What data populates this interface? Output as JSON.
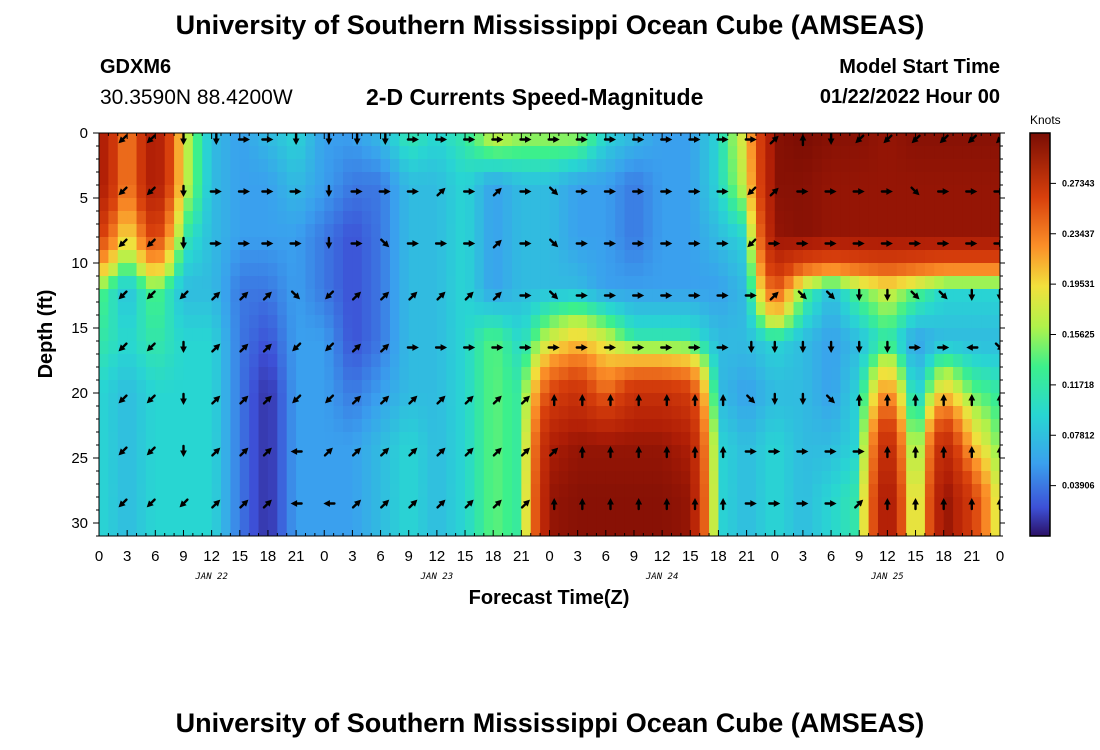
{
  "header": {
    "title": "University of Southern Mississippi Ocean Cube (AMSEAS)",
    "station": "GDXM6",
    "coords": "30.3590N  88.4200W",
    "subtitle": "2-D Currents Speed-Magnitude",
    "start_label": "Model Start Time",
    "start_value": "01/22/2022 Hour 00"
  },
  "footer": {
    "title": "University of Southern Mississippi Ocean Cube (AMSEAS)"
  },
  "chart_data": {
    "type": "heatmap",
    "title": "2-D Currents Speed-Magnitude",
    "xlabel": "Forecast Time(Z)",
    "ylabel": "Depth (ft)",
    "x_tick_labels": [
      "0",
      "3",
      "6",
      "9",
      "12",
      "15",
      "18",
      "21",
      "0",
      "3",
      "6",
      "9",
      "12",
      "15",
      "18",
      "21",
      "0",
      "3",
      "6",
      "9",
      "12",
      "15",
      "18",
      "21",
      "0",
      "3",
      "6",
      "9",
      "12",
      "15",
      "18",
      "21",
      "0"
    ],
    "xlim_hours": [
      0,
      96
    ],
    "day_labels": [
      {
        "label": "JAN 22",
        "hour": 12
      },
      {
        "label": "JAN 23",
        "hour": 36
      },
      {
        "label": "JAN 24",
        "hour": 60
      },
      {
        "label": "JAN 25",
        "hour": 84
      }
    ],
    "y_tick_labels": [
      "0",
      "5",
      "10",
      "15",
      "20",
      "25",
      "30"
    ],
    "ylim_ft": [
      0,
      31
    ],
    "colorbar": {
      "unit": "Knots",
      "ticks": [
        "0.27343",
        "0.23437",
        "0.19531",
        "0.15625",
        "0.11718",
        "0.07812",
        "0.03906"
      ],
      "range": [
        0,
        0.3125
      ]
    },
    "vector_hours": [
      2.5,
      5.5,
      9,
      12.5,
      15.5,
      18,
      21,
      24.5,
      27.5,
      30.5,
      33.5,
      36.5,
      39.5,
      42.5,
      45.5,
      48.5,
      51.5,
      54.5,
      57.5,
      60.5,
      63.5,
      66.5,
      69.5,
      72,
      75,
      78,
      81,
      84,
      87,
      90,
      93,
      96
    ],
    "vector_depths_ft": [
      0.5,
      4.5,
      8.5,
      12.5,
      16.5,
      20.5,
      24.5,
      28.5
    ],
    "speed_field_knots": {
      "hours": [
        0,
        3,
        6,
        9,
        12,
        15,
        18,
        21,
        24,
        27,
        30,
        33,
        36,
        39,
        42,
        45,
        48,
        51,
        54,
        57,
        60,
        63,
        66,
        69,
        72,
        75,
        78,
        81,
        84,
        87,
        90,
        93,
        96
      ],
      "depths_ft": [
        0,
        4,
        8,
        12,
        16,
        20,
        24,
        28,
        31
      ],
      "values": [
        [
          0.28,
          0.14,
          0.28,
          0.1,
          0.05,
          0.04,
          0.05,
          0.06,
          0.04,
          0.04,
          0.05,
          0.07,
          0.06,
          0.07,
          0.1,
          0.09,
          0.09,
          0.09,
          0.06,
          0.05,
          0.04,
          0.04,
          0.06,
          0.11,
          0.29,
          0.3,
          0.29,
          0.29,
          0.28,
          0.29,
          0.29,
          0.29,
          0.29
        ],
        [
          0.28,
          0.14,
          0.28,
          0.1,
          0.05,
          0.04,
          0.04,
          0.05,
          0.04,
          0.03,
          0.03,
          0.05,
          0.05,
          0.06,
          0.04,
          0.05,
          0.05,
          0.04,
          0.04,
          0.03,
          0.04,
          0.04,
          0.06,
          0.1,
          0.29,
          0.29,
          0.28,
          0.28,
          0.28,
          0.28,
          0.28,
          0.28,
          0.28
        ],
        [
          0.2,
          0.1,
          0.2,
          0.07,
          0.05,
          0.04,
          0.04,
          0.04,
          0.03,
          0.02,
          0.03,
          0.05,
          0.05,
          0.06,
          0.04,
          0.05,
          0.05,
          0.04,
          0.04,
          0.03,
          0.04,
          0.04,
          0.05,
          0.06,
          0.28,
          0.29,
          0.28,
          0.28,
          0.28,
          0.28,
          0.28,
          0.28,
          0.28
        ],
        [
          0.08,
          0.05,
          0.08,
          0.05,
          0.05,
          0.03,
          0.03,
          0.04,
          0.03,
          0.02,
          0.03,
          0.05,
          0.05,
          0.06,
          0.04,
          0.05,
          0.05,
          0.05,
          0.04,
          0.04,
          0.04,
          0.04,
          0.04,
          0.05,
          0.18,
          0.08,
          0.05,
          0.08,
          0.1,
          0.08,
          0.06,
          0.06,
          0.06
        ],
        [
          0.07,
          0.06,
          0.07,
          0.06,
          0.06,
          0.03,
          0.02,
          0.04,
          0.04,
          0.02,
          0.03,
          0.05,
          0.05,
          0.06,
          0.08,
          0.06,
          0.1,
          0.12,
          0.1,
          0.07,
          0.07,
          0.07,
          0.05,
          0.05,
          0.06,
          0.05,
          0.04,
          0.05,
          0.07,
          0.04,
          0.05,
          0.05,
          0.05
        ],
        [
          0.06,
          0.05,
          0.06,
          0.06,
          0.06,
          0.03,
          0.01,
          0.04,
          0.04,
          0.03,
          0.04,
          0.05,
          0.05,
          0.06,
          0.08,
          0.07,
          0.19,
          0.22,
          0.16,
          0.22,
          0.22,
          0.2,
          0.05,
          0.04,
          0.05,
          0.05,
          0.04,
          0.06,
          0.15,
          0.05,
          0.12,
          0.08,
          0.07
        ],
        [
          0.06,
          0.05,
          0.06,
          0.06,
          0.06,
          0.03,
          0.01,
          0.04,
          0.04,
          0.04,
          0.05,
          0.06,
          0.05,
          0.06,
          0.08,
          0.07,
          0.26,
          0.28,
          0.28,
          0.28,
          0.28,
          0.26,
          0.06,
          0.05,
          0.06,
          0.05,
          0.05,
          0.06,
          0.25,
          0.06,
          0.25,
          0.12,
          0.08
        ],
        [
          0.06,
          0.05,
          0.06,
          0.06,
          0.06,
          0.03,
          0.01,
          0.04,
          0.04,
          0.04,
          0.05,
          0.06,
          0.05,
          0.06,
          0.08,
          0.07,
          0.28,
          0.29,
          0.29,
          0.29,
          0.29,
          0.28,
          0.06,
          0.05,
          0.06,
          0.05,
          0.06,
          0.07,
          0.29,
          0.07,
          0.29,
          0.2,
          0.09
        ],
        [
          0.06,
          0.05,
          0.06,
          0.06,
          0.06,
          0.03,
          0.01,
          0.04,
          0.04,
          0.04,
          0.05,
          0.06,
          0.05,
          0.06,
          0.08,
          0.07,
          0.28,
          0.29,
          0.29,
          0.29,
          0.29,
          0.28,
          0.06,
          0.05,
          0.06,
          0.05,
          0.06,
          0.07,
          0.29,
          0.07,
          0.29,
          0.2,
          0.09
        ]
      ]
    },
    "vector_rows": [
      "SW SW S S E E S S S S E E E E E E E E E E E E E NE N S SW SW SW SW SW SW",
      "SW SW S E E E E S E E E NE E NE E SE E E E E E E SW NE E E E E SE E E E",
      "SW SW S E E E E S E SE E E E NE E SE E E E E E E SW E E E E E E E E E",
      "SW SW SW NE NE NE SE SW NE NE NE NE NE NE E SE E E E E E E E NE SE SE S S SE SE S S",
      "SW SW S NE NE NE SW SW NE NE E E E E E E E E E E E E S S S S S S E E W SE",
      "SW SW S NE NE NE SW SW NE NE NE NE NE NE NE N N N N N N N SE S S SE N N N N N N",
      "SW SW S NE NE NE W NE NE NE NE NE NE NE NE NE N N N N N N E E E E E N N N N N",
      "SW SW SW NE NE NE W W NE NE NE NE NE NE NE N N N N N N N E E E E NE N N N N N"
    ]
  }
}
